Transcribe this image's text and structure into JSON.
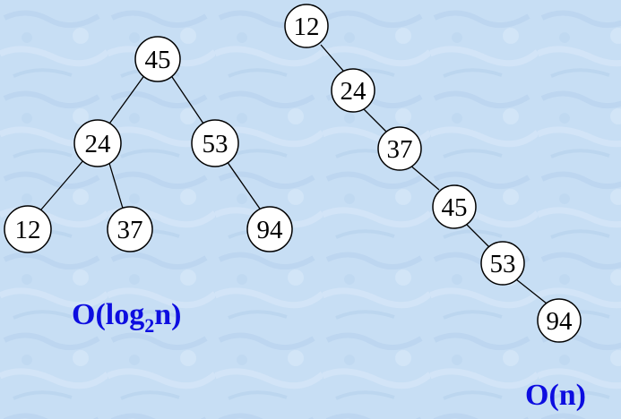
{
  "colors": {
    "background": "#c7def4",
    "node_fill": "#ffffff",
    "node_stroke": "#000000",
    "caption": "#0d0de0"
  },
  "balanced_tree": {
    "nodes": [
      {
        "id": "b45",
        "label": "45"
      },
      {
        "id": "b24",
        "label": "24"
      },
      {
        "id": "b53",
        "label": "53"
      },
      {
        "id": "b12",
        "label": "12"
      },
      {
        "id": "b37",
        "label": "37"
      },
      {
        "id": "b94",
        "label": "94"
      }
    ],
    "edges": [
      [
        "b45",
        "b24"
      ],
      [
        "b45",
        "b53"
      ],
      [
        "b24",
        "b12"
      ],
      [
        "b24",
        "b37"
      ],
      [
        "b53",
        "b94"
      ]
    ],
    "caption": {
      "prefix": "O(log",
      "sub": "2",
      "suffix": "n)"
    }
  },
  "skewed_tree": {
    "nodes": [
      {
        "id": "s12",
        "label": "12"
      },
      {
        "id": "s24",
        "label": "24"
      },
      {
        "id": "s37",
        "label": "37"
      },
      {
        "id": "s45",
        "label": "45"
      },
      {
        "id": "s53",
        "label": "53"
      },
      {
        "id": "s94",
        "label": "94"
      }
    ],
    "edges": [
      [
        "s12",
        "s24"
      ],
      [
        "s24",
        "s37"
      ],
      [
        "s37",
        "s45"
      ],
      [
        "s45",
        "s53"
      ],
      [
        "s53",
        "s94"
      ]
    ],
    "caption": "O(n)"
  }
}
